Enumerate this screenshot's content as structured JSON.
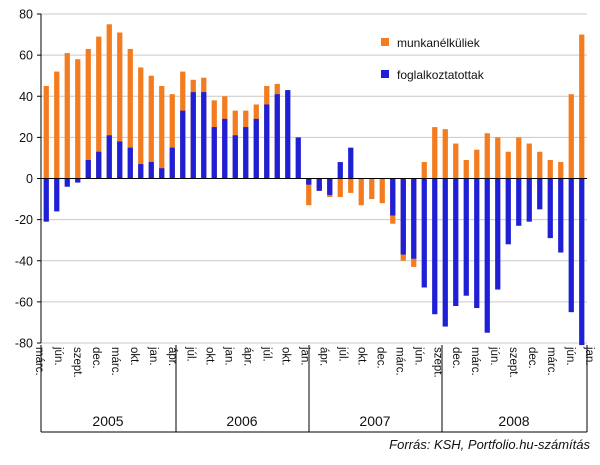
{
  "chart_data": {
    "type": "bar",
    "ylim": [
      -80,
      80
    ],
    "yticks": [
      80,
      60,
      40,
      20,
      0,
      -20,
      -40,
      -60,
      -80
    ],
    "series": [
      {
        "name": "munkanélküliek",
        "color": "#f47c20",
        "values": [
          45,
          52,
          61,
          58,
          63,
          69,
          75,
          71,
          63,
          54,
          50,
          45,
          41,
          52,
          48,
          49,
          38,
          40,
          33,
          33,
          36,
          45,
          46,
          0,
          0,
          -13,
          -6,
          -9,
          -9,
          -7,
          -13,
          -10,
          -12,
          -22,
          -40,
          -43,
          8,
          25,
          24,
          17,
          9,
          14,
          22,
          20,
          13,
          20,
          17,
          13,
          9,
          8,
          41,
          70
        ]
      },
      {
        "name": "foglalkoztatottak",
        "color": "#1f1fd6",
        "values": [
          -21,
          -16,
          -4,
          -2,
          9,
          13,
          21,
          18,
          15,
          7,
          8,
          5,
          15,
          33,
          42,
          42,
          25,
          29,
          21,
          25,
          29,
          36,
          41,
          43,
          20,
          -3,
          -6,
          -8,
          8,
          15,
          0,
          0,
          0,
          -18,
          -37,
          -39,
          -53,
          -66,
          -72,
          -62,
          -57,
          -63,
          -75,
          -54,
          -32,
          -23,
          -21,
          -15,
          -29,
          -36,
          -65,
          -81
        ]
      }
    ],
    "month_labels": [
      "márc.",
      "jún.",
      "szept.",
      "dec.",
      "márc.",
      "okt.",
      "jan.",
      "ápr.",
      "júl.",
      "okt.",
      "jan.",
      "ápr.",
      "júl.",
      "okt.",
      "jan.",
      "ápr.",
      "júl.",
      "okt.",
      "dec.",
      "márc.",
      "jún.",
      "szept.",
      "dec.",
      "márc.",
      "jún.",
      "szept.",
      "dec.",
      "márc.",
      "jún.",
      "jan."
    ],
    "years": [
      "2005",
      "2006",
      "2007",
      "2008"
    ],
    "source": "Forrás: KSH, Portfolio.hu-számítás"
  }
}
